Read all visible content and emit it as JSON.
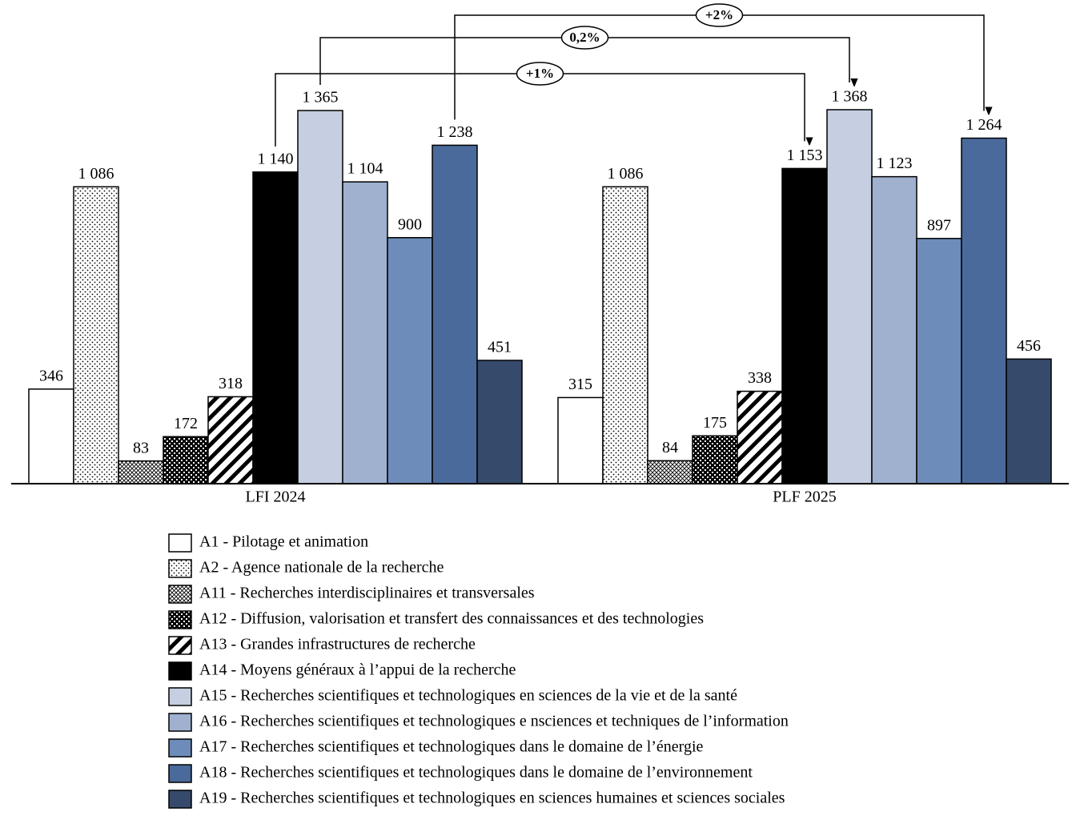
{
  "chart_data": {
    "type": "bar",
    "categories": [
      "LFI 2024",
      "PLF 2025"
    ],
    "series": [
      {
        "name": "A1 - Pilotage et animation",
        "color": "#ffffff",
        "values": [
          346,
          315
        ]
      },
      {
        "name": "A2 - Agence nationale de la recherche",
        "color": "#ffffff",
        "pattern": "dots",
        "values": [
          1086,
          1086
        ],
        "value_labels": [
          "1 086",
          "1 086"
        ]
      },
      {
        "name": "A11 - Recherches interdisciplinaires et transversales",
        "color": "#ffffff",
        "pattern": "crosshatch",
        "values": [
          83,
          84
        ]
      },
      {
        "name": "A12 - Diffusion, valorisation et transfert des connaissances et des technologies",
        "color": "#000000",
        "pattern": "checker",
        "values": [
          172,
          175
        ]
      },
      {
        "name": "A13 - Grandes infrastructures de recherche",
        "color": "#ffffff",
        "pattern": "stripes",
        "values": [
          318,
          338
        ]
      },
      {
        "name": "A14 - Moyens généraux à l’appui de la recherche",
        "color": "#000000",
        "values": [
          1140,
          1153
        ],
        "value_labels": [
          "1 140",
          "1 153"
        ]
      },
      {
        "name": "A15 - Recherches scientifiques et technologiques en sciences de la vie et de la santé",
        "color": "#c5cfe1",
        "values": [
          1365,
          1368
        ],
        "value_labels": [
          "1 365",
          "1 368"
        ]
      },
      {
        "name": "A16 - Recherches scientifiques et technologiques e nsciences et techniques de l’information",
        "color": "#9fb1cf",
        "values": [
          1104,
          1123
        ],
        "value_labels": [
          "1 104",
          "1 123"
        ]
      },
      {
        "name": "A17 - Recherches scientifiques et technologiques dans le domaine de l’énergie",
        "color": "#6d8cba",
        "values": [
          900,
          897
        ]
      },
      {
        "name": "A18 - Recherches scientifiques et technologiques dans le domaine de l’environnement",
        "color": "#4a6a9b",
        "values": [
          1238,
          1264
        ],
        "value_labels": [
          "1 238",
          "1 264"
        ]
      },
      {
        "name": "A19 - Recherches scientifiques et technologiques en sciences humaines et sciences sociales",
        "color": "#364a6b",
        "values": [
          451,
          456
        ]
      }
    ],
    "annotations": [
      "+1%",
      "0,2%",
      "+2%"
    ]
  }
}
